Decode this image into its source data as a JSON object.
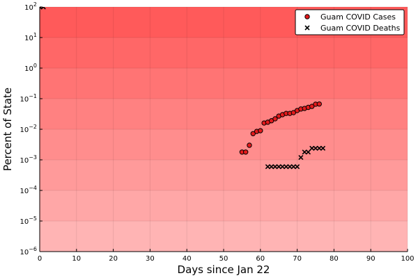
{
  "chart_data": {
    "type": "scatter",
    "xlabel": "Days since Jan 22",
    "ylabel": "Percent of State",
    "xlim": [
      0,
      100
    ],
    "ylim": [
      1e-06,
      100
    ],
    "yscale": "log",
    "xticks": [
      0,
      10,
      20,
      30,
      40,
      50,
      60,
      70,
      80,
      90,
      100
    ],
    "yticks": [
      {
        "value": 1e-06,
        "base": "10",
        "exp": "−6"
      },
      {
        "value": 1e-05,
        "base": "10",
        "exp": "−5"
      },
      {
        "value": 0.0001,
        "base": "10",
        "exp": "−4"
      },
      {
        "value": 0.001,
        "base": "10",
        "exp": "−3"
      },
      {
        "value": 0.01,
        "base": "10",
        "exp": "−2"
      },
      {
        "value": 0.1,
        "base": "10",
        "exp": "−1"
      },
      {
        "value": 1,
        "base": "10",
        "exp": "0"
      },
      {
        "value": 10,
        "base": "10",
        "exp": "1"
      },
      {
        "value": 100,
        "base": "10",
        "exp": "2"
      }
    ],
    "grid": true,
    "legend_position": "top-right",
    "background_gradient": {
      "top_color": "#ff5a5a",
      "bottom_color": "#ffb4b4"
    },
    "series": [
      {
        "name": "Guam COVID Cases",
        "marker": "circle",
        "color": "#e41a1c",
        "x": [
          55,
          56,
          57,
          58,
          59,
          60,
          61,
          62,
          63,
          64,
          65,
          66,
          67,
          68,
          69,
          70,
          71,
          72,
          73,
          74,
          75,
          76
        ],
        "y": [
          0.0018,
          0.0018,
          0.003,
          0.0072,
          0.0085,
          0.009,
          0.016,
          0.017,
          0.019,
          0.022,
          0.027,
          0.03,
          0.033,
          0.033,
          0.035,
          0.041,
          0.046,
          0.048,
          0.052,
          0.056,
          0.066,
          0.067
        ]
      },
      {
        "name": "Guam COVID Deaths",
        "marker": "x",
        "color": "#000000",
        "x": [
          0,
          1,
          62,
          63,
          64,
          65,
          66,
          67,
          68,
          69,
          70,
          71,
          72,
          73,
          74,
          75,
          76,
          77
        ],
        "y": [
          100,
          100,
          0.0006,
          0.0006,
          0.0006,
          0.0006,
          0.0006,
          0.0006,
          0.0006,
          0.0006,
          0.0006,
          0.0012,
          0.0018,
          0.0018,
          0.0024,
          0.0024,
          0.0024,
          0.0024
        ]
      }
    ]
  }
}
